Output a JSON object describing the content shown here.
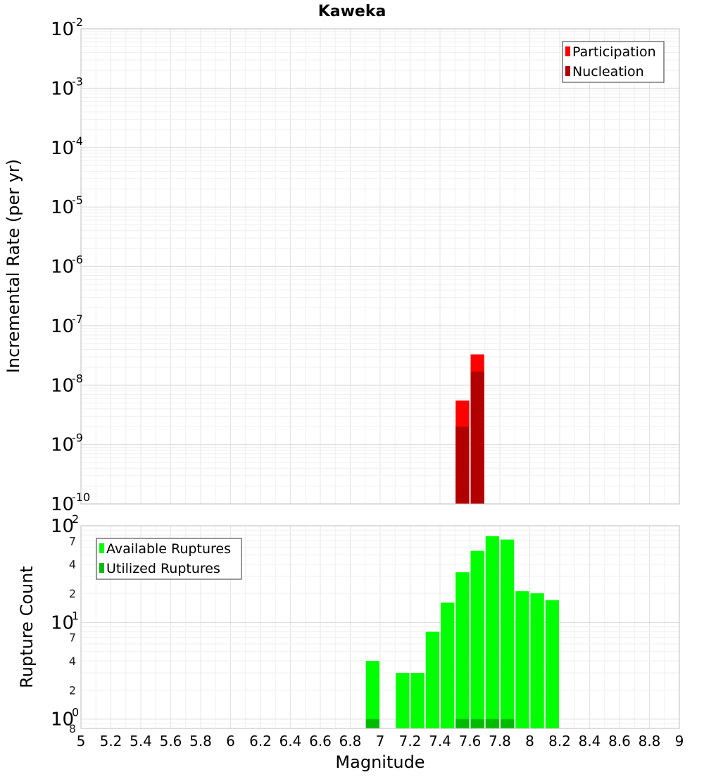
{
  "chart_data": {
    "title": "Kaweka",
    "xlabel": "Magnitude",
    "xlim": [
      5,
      9
    ],
    "x_ticks": [
      "5",
      "5.2",
      "5.4",
      "5.6",
      "5.8",
      "6",
      "6.2",
      "6.4",
      "6.6",
      "6.8",
      "7",
      "7.2",
      "7.4",
      "7.6",
      "7.8",
      "8",
      "8.2",
      "8.4",
      "8.6",
      "8.8",
      "9"
    ],
    "panels": [
      {
        "type": "bar",
        "ylabel": "Incremental Rate (per yr)",
        "yscale": "log",
        "ylim": [
          1e-10,
          0.01
        ],
        "y_ticks": [
          {
            "base": "10",
            "exp": "-10"
          },
          {
            "base": "10",
            "exp": "-9"
          },
          {
            "base": "10",
            "exp": "-8"
          },
          {
            "base": "10",
            "exp": "-7"
          },
          {
            "base": "10",
            "exp": "-6"
          },
          {
            "base": "10",
            "exp": "-5"
          },
          {
            "base": "10",
            "exp": "-4"
          },
          {
            "base": "10",
            "exp": "-3"
          },
          {
            "base": "10",
            "exp": "-2"
          }
        ],
        "legend": {
          "position": "top-right"
        },
        "series": [
          {
            "name": "Participation",
            "color": "#ff0000",
            "x": [
              7.55,
              7.65
            ],
            "values": [
              5.5e-09,
              3.3e-08
            ]
          },
          {
            "name": "Nucleation",
            "color": "#b20000",
            "x": [
              7.55,
              7.65
            ],
            "values": [
              2e-09,
              1.7e-08
            ]
          }
        ]
      },
      {
        "type": "bar",
        "ylabel": "Rupture Count",
        "yscale": "log",
        "ylim": [
          0.8,
          100
        ],
        "y_ticks": [
          {
            "base": "10",
            "exp": "0",
            "value": 1
          },
          {
            "base": "10",
            "exp": "1",
            "value": 10
          },
          {
            "base": "10",
            "exp": "2",
            "value": 100
          }
        ],
        "y_minor_ticks": [
          {
            "label": "8",
            "value": 0.8
          },
          {
            "label": "2",
            "value": 2
          },
          {
            "label": "4",
            "value": 4
          },
          {
            "label": "7",
            "value": 7
          },
          {
            "label": "2",
            "value": 20
          },
          {
            "label": "4",
            "value": 40
          },
          {
            "label": "7",
            "value": 70
          }
        ],
        "legend": {
          "position": "top-left"
        },
        "series": [
          {
            "name": "Available Ruptures",
            "color": "#00ff00",
            "x": [
              6.95,
              7.15,
              7.25,
              7.35,
              7.45,
              7.55,
              7.65,
              7.75,
              7.85,
              7.95,
              8.05,
              8.15
            ],
            "values": [
              4,
              3,
              3,
              8,
              16,
              33,
              55,
              78,
              72,
              21,
              20,
              17
            ]
          },
          {
            "name": "Utilized Ruptures",
            "color": "#00bb00",
            "x": [
              6.95,
              7.55,
              7.65,
              7.75,
              7.85
            ],
            "values": [
              1,
              1,
              1,
              1,
              1
            ]
          }
        ]
      }
    ]
  }
}
